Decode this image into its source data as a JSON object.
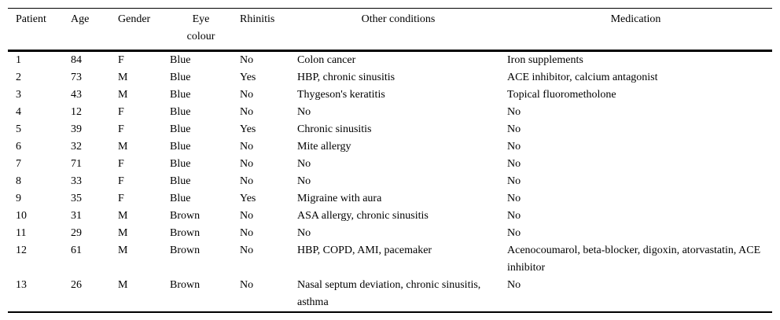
{
  "colors": {
    "text": "#000000",
    "background": "#ffffff",
    "rule_lines": "#000000"
  },
  "table": {
    "columns": [
      "Patient",
      "Age",
      "Gender",
      "Eye colour",
      "Rhinitis",
      "Other conditions",
      "Medication"
    ],
    "rows": [
      [
        "1",
        "84",
        "F",
        "Blue",
        "No",
        "Colon cancer",
        "Iron supplements"
      ],
      [
        "2",
        "73",
        "M",
        "Blue",
        "Yes",
        "HBP, chronic sinusitis",
        "ACE inhibitor, calcium antagonist"
      ],
      [
        "3",
        "43",
        "M",
        "Blue",
        "No",
        "Thygeson's keratitis",
        "Topical fluorometholone"
      ],
      [
        "4",
        "12",
        "F",
        "Blue",
        "No",
        "No",
        "No"
      ],
      [
        "5",
        "39",
        "F",
        "Blue",
        "Yes",
        "Chronic sinusitis",
        "No"
      ],
      [
        "6",
        "32",
        "M",
        "Blue",
        "No",
        "Mite allergy",
        "No"
      ],
      [
        "7",
        "71",
        "F",
        "Blue",
        "No",
        "No",
        "No"
      ],
      [
        "8",
        "33",
        "F",
        "Blue",
        "No",
        "No",
        "No"
      ],
      [
        "9",
        "35",
        "F",
        "Blue",
        "Yes",
        "Migraine with aura",
        "No"
      ],
      [
        "10",
        "31",
        "M",
        "Brown",
        "No",
        "ASA allergy, chronic sinusitis",
        "No"
      ],
      [
        "11",
        "29",
        "M",
        "Brown",
        "No",
        "No",
        "No"
      ],
      [
        "12",
        "61",
        "M",
        "Brown",
        "No",
        "HBP, COPD, AMI, pacemaker",
        "Acenocoumarol, beta-blocker, digoxin, atorvastatin, ACE inhibitor"
      ],
      [
        "13",
        "26",
        "M",
        "Brown",
        "No",
        "Nasal septum deviation, chronic sinusitis, asthma",
        "No"
      ]
    ]
  }
}
